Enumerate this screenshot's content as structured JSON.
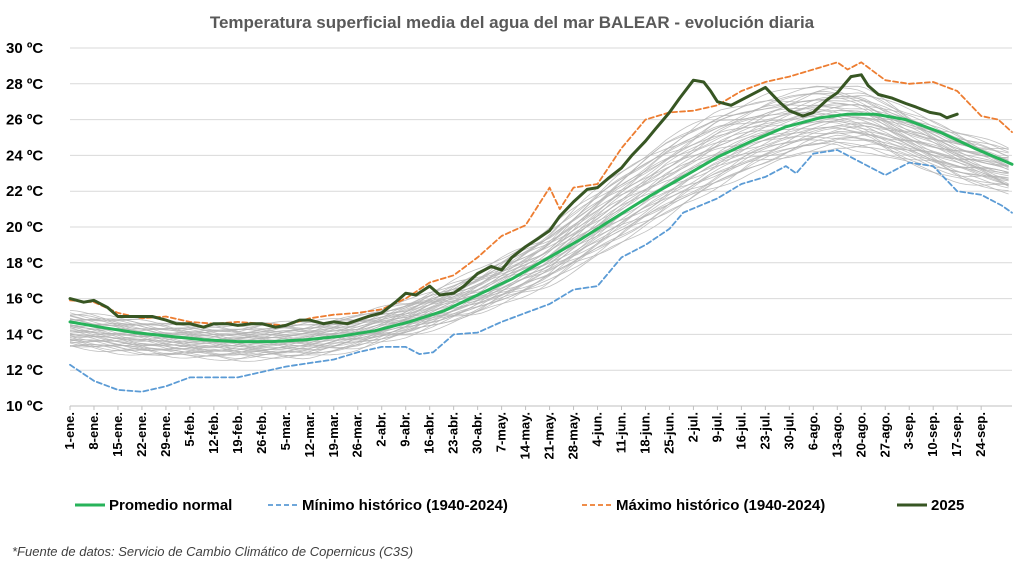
{
  "chart_data": {
    "type": "line",
    "title": "Temperatura superficial media del agua del mar BALEAR - evolución diaria",
    "xlabel": "",
    "ylabel": "",
    "ylim": [
      10,
      30
    ],
    "xlim": [
      1,
      276
    ],
    "y_ticks": [
      10,
      12,
      14,
      16,
      18,
      20,
      22,
      24,
      26,
      28,
      30
    ],
    "y_tick_labels": [
      "10 ºC",
      "12 ºC",
      "14 ºC",
      "16 ºC",
      "18 ºC",
      "20 ºC",
      "22 ºC",
      "24 ºC",
      "26 ºC",
      "28 ºC",
      "30 ºC"
    ],
    "x_ticks": [
      1,
      8,
      15,
      22,
      29,
      36,
      43,
      50,
      57,
      64,
      71,
      78,
      85,
      92,
      99,
      106,
      113,
      120,
      127,
      134,
      141,
      148,
      155,
      162,
      169,
      176,
      183,
      190,
      197,
      204,
      211,
      218,
      225,
      232,
      239,
      246,
      253,
      260,
      267
    ],
    "x_tick_labels": [
      "1-ene.",
      "8-ene.",
      "15-ene.",
      "22-ene.",
      "29-ene.",
      "5-feb.",
      "12-feb.",
      "19-feb.",
      "26-feb.",
      "5-mar.",
      "12-mar.",
      "19-mar.",
      "26-mar.",
      "2-abr.",
      "9-abr.",
      "16-abr.",
      "23-abr.",
      "30-abr.",
      "7-may.",
      "14-may.",
      "21-may.",
      "28-may.",
      "4-jun.",
      "11-jun.",
      "18-jun.",
      "25-jun.",
      "2-jul.",
      "9-jul.",
      "16-jul.",
      "23-jul.",
      "30-jul.",
      "6-ago.",
      "13-ago.",
      "20-ago.",
      "27-ago.",
      "3-sep.",
      "10-sep.",
      "17-sep.",
      "24-sep."
    ],
    "grid": true,
    "legend_position": "bottom",
    "background_series": {
      "description_color": "#b4b4b4",
      "band_low": [
        [
          1,
          13.3
        ],
        [
          30,
          12.8
        ],
        [
          50,
          12.7
        ],
        [
          70,
          12.8
        ],
        [
          85,
          13.3
        ],
        [
          100,
          14.0
        ],
        [
          120,
          15.2
        ],
        [
          140,
          16.8
        ],
        [
          160,
          19.0
        ],
        [
          180,
          21.2
        ],
        [
          200,
          23.2
        ],
        [
          215,
          24.2
        ],
        [
          225,
          24.6
        ],
        [
          235,
          24.4
        ],
        [
          245,
          23.8
        ],
        [
          260,
          22.8
        ],
        [
          276,
          22.0
        ]
      ],
      "band_high": [
        [
          1,
          15.2
        ],
        [
          30,
          14.6
        ],
        [
          50,
          14.4
        ],
        [
          70,
          14.6
        ],
        [
          85,
          15.0
        ],
        [
          100,
          15.8
        ],
        [
          120,
          17.4
        ],
        [
          140,
          19.6
        ],
        [
          160,
          22.8
        ],
        [
          175,
          24.8
        ],
        [
          190,
          26.4
        ],
        [
          205,
          27.2
        ],
        [
          220,
          27.8
        ],
        [
          232,
          27.6
        ],
        [
          245,
          26.4
        ],
        [
          260,
          25.2
        ],
        [
          276,
          24.2
        ]
      ]
    },
    "series": [
      {
        "name": "Promedio normal",
        "color": "#27b35a",
        "style": "solid",
        "width": 3,
        "points": [
          [
            1,
            14.7
          ],
          [
            10,
            14.4
          ],
          [
            20,
            14.1
          ],
          [
            30,
            13.9
          ],
          [
            40,
            13.7
          ],
          [
            50,
            13.6
          ],
          [
            60,
            13.6
          ],
          [
            70,
            13.7
          ],
          [
            80,
            13.9
          ],
          [
            90,
            14.2
          ],
          [
            100,
            14.7
          ],
          [
            110,
            15.3
          ],
          [
            120,
            16.2
          ],
          [
            130,
            17.1
          ],
          [
            140,
            18.2
          ],
          [
            150,
            19.3
          ],
          [
            160,
            20.5
          ],
          [
            170,
            21.7
          ],
          [
            180,
            22.8
          ],
          [
            190,
            23.9
          ],
          [
            200,
            24.8
          ],
          [
            210,
            25.6
          ],
          [
            220,
            26.1
          ],
          [
            228,
            26.3
          ],
          [
            236,
            26.3
          ],
          [
            245,
            26.0
          ],
          [
            255,
            25.3
          ],
          [
            265,
            24.4
          ],
          [
            276,
            23.5
          ]
        ]
      },
      {
        "name": "Mínimo histórico (1940-2024)",
        "color": "#5b9bd5",
        "style": "dashed",
        "width": 1.8,
        "points": [
          [
            1,
            12.3
          ],
          [
            8,
            11.4
          ],
          [
            15,
            10.9
          ],
          [
            22,
            10.8
          ],
          [
            29,
            11.1
          ],
          [
            36,
            11.6
          ],
          [
            43,
            11.6
          ],
          [
            50,
            11.6
          ],
          [
            57,
            11.9
          ],
          [
            64,
            12.2
          ],
          [
            71,
            12.4
          ],
          [
            78,
            12.6
          ],
          [
            85,
            13.0
          ],
          [
            92,
            13.3
          ],
          [
            99,
            13.3
          ],
          [
            103,
            12.9
          ],
          [
            107,
            13.0
          ],
          [
            113,
            14.0
          ],
          [
            120,
            14.1
          ],
          [
            127,
            14.7
          ],
          [
            134,
            15.2
          ],
          [
            141,
            15.7
          ],
          [
            148,
            16.5
          ],
          [
            155,
            16.7
          ],
          [
            162,
            18.3
          ],
          [
            169,
            19.0
          ],
          [
            176,
            19.9
          ],
          [
            180,
            20.8
          ],
          [
            190,
            21.6
          ],
          [
            197,
            22.4
          ],
          [
            204,
            22.8
          ],
          [
            210,
            23.4
          ],
          [
            213,
            23.0
          ],
          [
            218,
            24.1
          ],
          [
            225,
            24.3
          ],
          [
            232,
            23.6
          ],
          [
            239,
            22.9
          ],
          [
            246,
            23.6
          ],
          [
            253,
            23.4
          ],
          [
            260,
            22.0
          ],
          [
            267,
            21.8
          ],
          [
            273,
            21.2
          ],
          [
            276,
            20.8
          ]
        ]
      },
      {
        "name": "Máximo histórico (1940-2024)",
        "color": "#ed7d31",
        "style": "dashed",
        "width": 1.8,
        "points": [
          [
            1,
            15.9
          ],
          [
            8,
            15.8
          ],
          [
            15,
            15.2
          ],
          [
            22,
            14.9
          ],
          [
            29,
            15.0
          ],
          [
            36,
            14.7
          ],
          [
            43,
            14.6
          ],
          [
            50,
            14.7
          ],
          [
            57,
            14.6
          ],
          [
            64,
            14.5
          ],
          [
            71,
            14.9
          ],
          [
            78,
            15.1
          ],
          [
            85,
            15.2
          ],
          [
            92,
            15.4
          ],
          [
            99,
            16.0
          ],
          [
            106,
            16.9
          ],
          [
            113,
            17.3
          ],
          [
            120,
            18.3
          ],
          [
            127,
            19.5
          ],
          [
            134,
            20.1
          ],
          [
            141,
            22.2
          ],
          [
            144,
            21.0
          ],
          [
            148,
            22.2
          ],
          [
            155,
            22.4
          ],
          [
            162,
            24.4
          ],
          [
            169,
            26.0
          ],
          [
            176,
            26.4
          ],
          [
            183,
            26.5
          ],
          [
            190,
            26.8
          ],
          [
            197,
            27.6
          ],
          [
            204,
            28.1
          ],
          [
            211,
            28.4
          ],
          [
            218,
            28.8
          ],
          [
            225,
            29.2
          ],
          [
            228,
            28.8
          ],
          [
            232,
            29.2
          ],
          [
            239,
            28.2
          ],
          [
            246,
            28.0
          ],
          [
            253,
            28.1
          ],
          [
            260,
            27.6
          ],
          [
            267,
            26.2
          ],
          [
            272,
            26.0
          ],
          [
            276,
            25.3
          ]
        ]
      },
      {
        "name": "2025",
        "color": "#375623",
        "style": "solid",
        "width": 3,
        "points": [
          [
            1,
            16.0
          ],
          [
            5,
            15.8
          ],
          [
            8,
            15.9
          ],
          [
            12,
            15.5
          ],
          [
            15,
            15.0
          ],
          [
            22,
            15.0
          ],
          [
            25,
            15.0
          ],
          [
            29,
            14.8
          ],
          [
            32,
            14.6
          ],
          [
            36,
            14.6
          ],
          [
            40,
            14.4
          ],
          [
            43,
            14.6
          ],
          [
            47,
            14.6
          ],
          [
            50,
            14.5
          ],
          [
            54,
            14.6
          ],
          [
            57,
            14.6
          ],
          [
            61,
            14.4
          ],
          [
            64,
            14.5
          ],
          [
            68,
            14.8
          ],
          [
            71,
            14.8
          ],
          [
            75,
            14.6
          ],
          [
            78,
            14.7
          ],
          [
            82,
            14.6
          ],
          [
            85,
            14.8
          ],
          [
            88,
            15.0
          ],
          [
            92,
            15.2
          ],
          [
            96,
            15.8
          ],
          [
            99,
            16.3
          ],
          [
            102,
            16.2
          ],
          [
            106,
            16.7
          ],
          [
            109,
            16.2
          ],
          [
            113,
            16.3
          ],
          [
            116,
            16.7
          ],
          [
            120,
            17.4
          ],
          [
            124,
            17.8
          ],
          [
            127,
            17.6
          ],
          [
            130,
            18.3
          ],
          [
            134,
            18.9
          ],
          [
            138,
            19.4
          ],
          [
            141,
            19.8
          ],
          [
            144,
            20.6
          ],
          [
            148,
            21.4
          ],
          [
            152,
            22.1
          ],
          [
            155,
            22.2
          ],
          [
            158,
            22.7
          ],
          [
            162,
            23.3
          ],
          [
            165,
            24.0
          ],
          [
            169,
            24.8
          ],
          [
            172,
            25.5
          ],
          [
            176,
            26.4
          ],
          [
            179,
            27.2
          ],
          [
            183,
            28.2
          ],
          [
            186,
            28.1
          ],
          [
            188,
            27.6
          ],
          [
            190,
            27.0
          ],
          [
            194,
            26.8
          ],
          [
            197,
            27.1
          ],
          [
            201,
            27.5
          ],
          [
            204,
            27.8
          ],
          [
            208,
            27.0
          ],
          [
            211,
            26.5
          ],
          [
            215,
            26.2
          ],
          [
            218,
            26.4
          ],
          [
            222,
            27.1
          ],
          [
            225,
            27.5
          ],
          [
            229,
            28.4
          ],
          [
            232,
            28.5
          ],
          [
            234,
            27.9
          ],
          [
            237,
            27.4
          ],
          [
            241,
            27.2
          ],
          [
            245,
            26.9
          ],
          [
            248,
            26.7
          ],
          [
            252,
            26.4
          ],
          [
            255,
            26.3
          ],
          [
            257,
            26.1
          ],
          [
            260,
            26.3
          ]
        ]
      }
    ]
  },
  "source_note": "*Fuente de datos: Servicio de Cambio Climático de Copernicus (C3S)"
}
